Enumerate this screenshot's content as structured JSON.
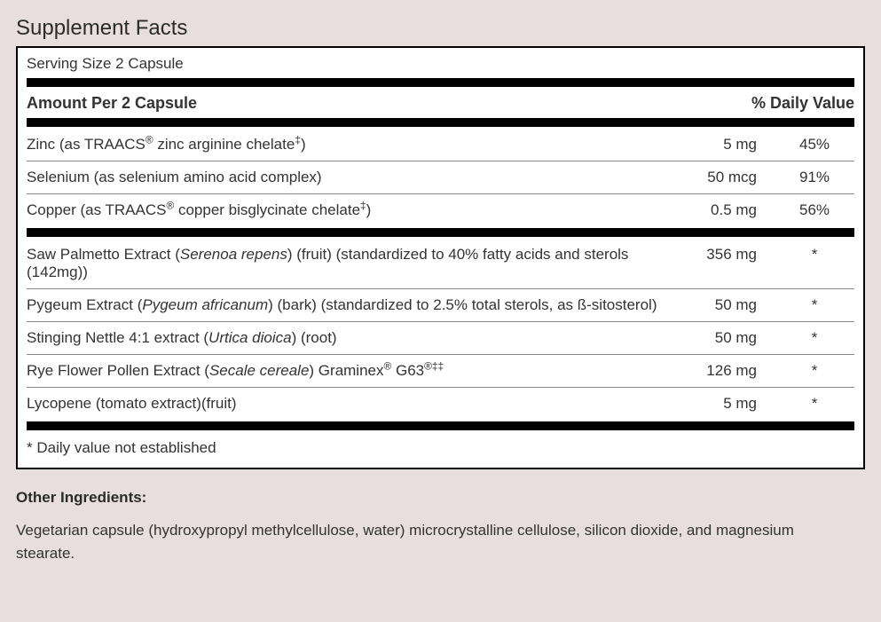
{
  "title": "Supplement Facts",
  "serving": "Serving Size 2 Capsule",
  "header": {
    "amount": "Amount Per 2 Capsule",
    "dv": "% Daily Value"
  },
  "section1": [
    {
      "name_parts": [
        "Zinc (as TRAACS",
        "®",
        " zinc arginine chelate",
        "‡",
        ")"
      ],
      "amount": "5 mg",
      "dv": "45%"
    },
    {
      "name_parts": [
        "Selenium (as selenium amino acid complex)"
      ],
      "amount": "50 mcg",
      "dv": "91%"
    },
    {
      "name_parts": [
        "Copper (as TRAACS",
        "®",
        " copper bisglycinate chelate",
        "‡",
        ")"
      ],
      "amount": "0.5 mg",
      "dv": "56%"
    }
  ],
  "section2": [
    {
      "pre": "Saw Palmetto Extract (",
      "italic": "Serenoa repens",
      "post": ") (fruit) (standardized to 40% fatty acids and sterols (142mg))",
      "amount": "356 mg",
      "dv": "*"
    },
    {
      "pre": "Pygeum Extract (",
      "italic": "Pygeum africanum",
      "post": ") (bark) (standardized to 2.5% total sterols, as ß-sitosterol)",
      "amount": "50 mg",
      "dv": "*"
    },
    {
      "pre": "Stinging Nettle 4:1 extract (",
      "italic": "Urtica dioica",
      "post": ") (root)",
      "amount": "50 mg",
      "dv": "*"
    },
    {
      "pre": "Rye Flower Pollen Extract (",
      "italic": "Secale cereale",
      "post": ") Graminex",
      "sup1": "®",
      "post2": " G63",
      "sup2": "®‡‡",
      "amount": "126 mg",
      "dv": "*"
    },
    {
      "pre": "Lycopene (tomato extract)(fruit)",
      "italic": "",
      "post": "",
      "amount": "5 mg",
      "dv": "*"
    }
  ],
  "footnote": "* Daily value not established",
  "other_title": "Other Ingredients:",
  "other_text": "Vegetarian capsule (hydroxypropyl methylcellulose, water) microcrystalline cellulose, silicon dioxide, and magnesium stearate."
}
